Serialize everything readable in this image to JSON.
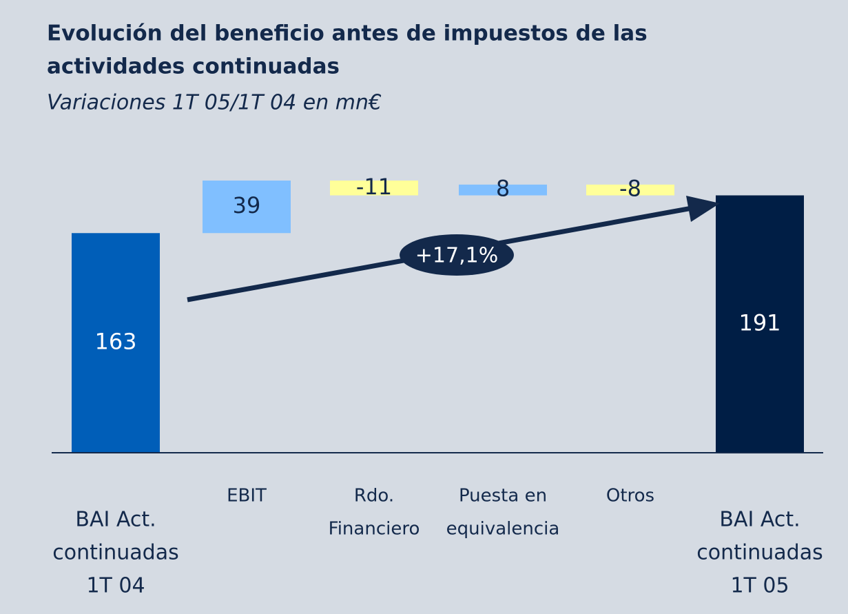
{
  "chart_data": {
    "type": "waterfall",
    "title": [
      "Evolución del beneficio antes de impuestos de las",
      "actividades continuadas"
    ],
    "subtitle": "Variaciones 1T 05/1T 04 en mn€",
    "annotation": "+17,1%",
    "categories": [
      [
        "BAI Act.",
        "continuadas",
        "1T 04"
      ],
      [
        "EBIT"
      ],
      [
        "Rdo.",
        "Financiero"
      ],
      [
        "Puesta en",
        "equivalencia"
      ],
      [
        "Otros"
      ],
      [
        "BAI Act.",
        "continuadas",
        "1T 05"
      ]
    ],
    "measure": [
      "absolute",
      "relative",
      "relative",
      "relative",
      "relative",
      "total"
    ],
    "values": [
      163,
      39,
      -11,
      8,
      -8,
      191
    ],
    "colors": [
      "#005eb8",
      "#80bfff",
      "#ffff99",
      "#80bfff",
      "#ffff99",
      "#001e45"
    ]
  }
}
